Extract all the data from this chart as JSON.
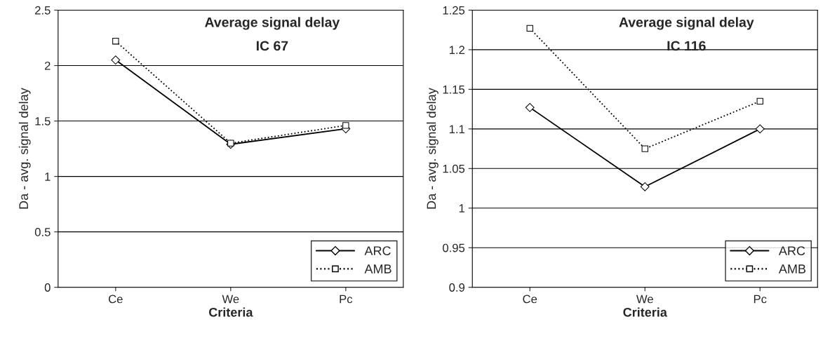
{
  "chart_data": [
    {
      "type": "line",
      "title": "Average signal delay",
      "subtitle": "IC 67",
      "xlabel": "Criteria",
      "ylabel": "Da - avg. signal delay",
      "categories": [
        "Ce",
        "We",
        "Pc"
      ],
      "series": [
        {
          "name": "ARC",
          "color": "#000000",
          "values": [
            2.05,
            1.29,
            1.43
          ],
          "marker": "diamond",
          "line_style": "solid"
        },
        {
          "name": "AMB",
          "color": "#000000",
          "values": [
            2.22,
            1.3,
            1.46
          ],
          "marker": "square",
          "line_style": "dotted"
        }
      ],
      "ylim": [
        0,
        2.5
      ],
      "yticks": [
        0,
        0.5,
        1,
        1.5,
        2,
        2.5
      ],
      "grid": "y",
      "legend": "bottom right"
    },
    {
      "type": "line",
      "title": "Average signal delay",
      "subtitle": "IC 116",
      "xlabel": "Criteria",
      "ylabel": "Da - avg. signal delay",
      "categories": [
        "Ce",
        "We",
        "Pc"
      ],
      "series": [
        {
          "name": "ARC",
          "color": "#000000",
          "values": [
            1.127,
            1.027,
            1.1
          ],
          "marker": "diamond",
          "line_style": "solid"
        },
        {
          "name": "AMB",
          "color": "#000000",
          "values": [
            1.227,
            1.075,
            1.135
          ],
          "marker": "square",
          "line_style": "dotted"
        }
      ],
      "ylim": [
        0.9,
        1.25
      ],
      "yticks": [
        0.9,
        0.95,
        1,
        1.05,
        1.1,
        1.15,
        1.2,
        1.25
      ],
      "grid": "y",
      "legend": "bottom right"
    }
  ]
}
